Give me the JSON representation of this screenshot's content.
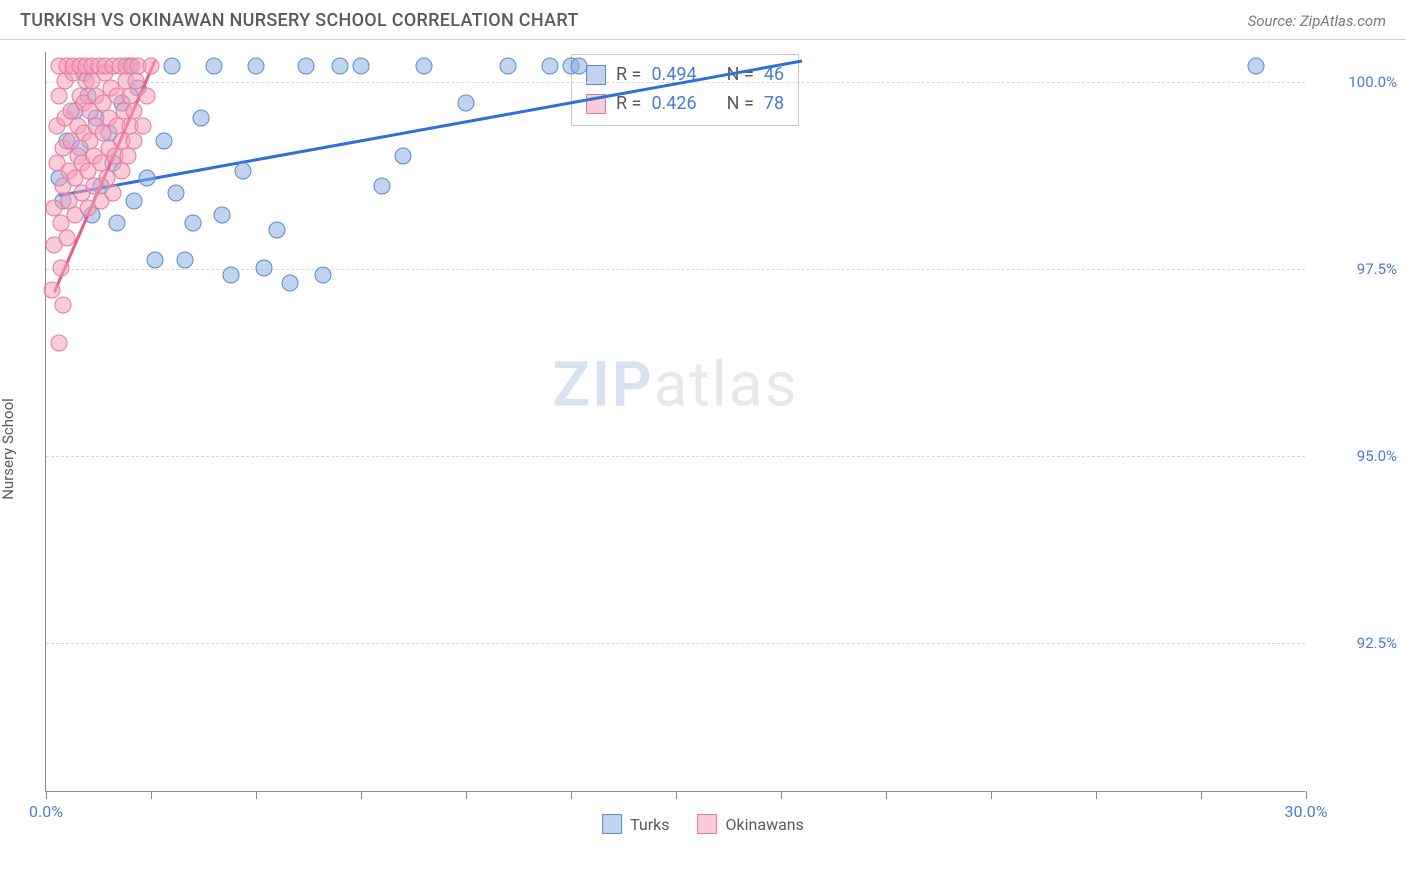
{
  "title": "TURKISH VS OKINAWAN NURSERY SCHOOL CORRELATION CHART",
  "source": "Source: ZipAtlas.com",
  "ylabel": "Nursery School",
  "watermark": {
    "zip": "ZIP",
    "atlas": "atlas"
  },
  "chart": {
    "type": "scatter",
    "background_color": "#ffffff",
    "grid_color": "#d8d8d8",
    "axis_color": "#888888",
    "xlim": [
      0.0,
      30.0
    ],
    "ylim": [
      90.5,
      100.4
    ],
    "xtick_positions": [
      0.0,
      2.5,
      5.0,
      7.5,
      10.0,
      12.5,
      15.0,
      17.5,
      20.0,
      22.5,
      25.0,
      27.5,
      30.0
    ],
    "xtick_labels": {
      "first": "0.0%",
      "last": "30.0%"
    },
    "ytick_positions": [
      92.5,
      95.0,
      97.5,
      100.0
    ],
    "ytick_labels": [
      "92.5%",
      "95.0%",
      "97.5%",
      "100.0%"
    ],
    "label_fontsize": 15,
    "tick_color": "#4a7bd0",
    "marker_size": 17,
    "series": [
      {
        "name": "Turks",
        "fill": "rgba(140,175,225,0.55)",
        "stroke": "#5a8bd0",
        "line_color": "#2f6fd8",
        "points": [
          [
            0.3,
            98.7
          ],
          [
            0.5,
            99.2
          ],
          [
            0.4,
            98.4
          ],
          [
            0.7,
            99.6
          ],
          [
            0.8,
            99.1
          ],
          [
            0.9,
            100.1
          ],
          [
            1.0,
            99.8
          ],
          [
            1.1,
            98.2
          ],
          [
            1.2,
            99.5
          ],
          [
            1.3,
            98.6
          ],
          [
            1.5,
            99.3
          ],
          [
            1.6,
            98.9
          ],
          [
            1.7,
            98.1
          ],
          [
            1.8,
            99.7
          ],
          [
            2.0,
            100.2
          ],
          [
            2.1,
            98.4
          ],
          [
            2.2,
            99.9
          ],
          [
            2.4,
            98.7
          ],
          [
            2.6,
            97.6
          ],
          [
            2.8,
            99.2
          ],
          [
            3.0,
            100.2
          ],
          [
            3.1,
            98.5
          ],
          [
            3.3,
            97.6
          ],
          [
            3.5,
            98.1
          ],
          [
            3.7,
            99.5
          ],
          [
            4.0,
            100.2
          ],
          [
            4.2,
            98.2
          ],
          [
            4.4,
            97.4
          ],
          [
            4.7,
            98.8
          ],
          [
            5.0,
            100.2
          ],
          [
            5.2,
            97.5
          ],
          [
            5.5,
            98.0
          ],
          [
            5.8,
            97.3
          ],
          [
            6.2,
            100.2
          ],
          [
            6.6,
            97.4
          ],
          [
            7.0,
            100.2
          ],
          [
            7.5,
            100.2
          ],
          [
            8.0,
            98.6
          ],
          [
            8.5,
            99.0
          ],
          [
            9.0,
            100.2
          ],
          [
            10.0,
            99.7
          ],
          [
            11.0,
            100.2
          ],
          [
            12.0,
            100.2
          ],
          [
            12.5,
            100.2
          ],
          [
            12.7,
            100.2
          ],
          [
            28.8,
            100.2
          ]
        ],
        "trend": {
          "x1": 0.3,
          "y1": 98.5,
          "x2": 18.0,
          "y2": 100.3
        }
      },
      {
        "name": "Okinawans",
        "fill": "rgba(245,160,185,0.55)",
        "stroke": "#e67aa0",
        "line_color": "#e85a8a",
        "points": [
          [
            0.15,
            97.2
          ],
          [
            0.2,
            97.8
          ],
          [
            0.2,
            98.3
          ],
          [
            0.25,
            98.9
          ],
          [
            0.25,
            99.4
          ],
          [
            0.3,
            99.8
          ],
          [
            0.3,
            100.2
          ],
          [
            0.35,
            97.5
          ],
          [
            0.35,
            98.1
          ],
          [
            0.4,
            98.6
          ],
          [
            0.4,
            99.1
          ],
          [
            0.45,
            99.5
          ],
          [
            0.45,
            100.0
          ],
          [
            0.5,
            100.2
          ],
          [
            0.5,
            97.9
          ],
          [
            0.55,
            98.4
          ],
          [
            0.55,
            98.8
          ],
          [
            0.6,
            99.2
          ],
          [
            0.6,
            99.6
          ],
          [
            0.65,
            100.1
          ],
          [
            0.65,
            100.2
          ],
          [
            0.7,
            98.2
          ],
          [
            0.7,
            98.7
          ],
          [
            0.75,
            99.0
          ],
          [
            0.75,
            99.4
          ],
          [
            0.8,
            99.8
          ],
          [
            0.8,
            100.2
          ],
          [
            0.85,
            98.5
          ],
          [
            0.85,
            98.9
          ],
          [
            0.9,
            99.3
          ],
          [
            0.9,
            99.7
          ],
          [
            0.95,
            100.0
          ],
          [
            0.95,
            100.2
          ],
          [
            1.0,
            98.3
          ],
          [
            1.0,
            98.8
          ],
          [
            1.05,
            99.2
          ],
          [
            1.05,
            99.6
          ],
          [
            1.1,
            100.0
          ],
          [
            1.1,
            100.2
          ],
          [
            1.15,
            98.6
          ],
          [
            1.15,
            99.0
          ],
          [
            1.2,
            99.4
          ],
          [
            1.2,
            99.8
          ],
          [
            1.25,
            100.2
          ],
          [
            1.3,
            98.4
          ],
          [
            1.3,
            98.9
          ],
          [
            1.35,
            99.3
          ],
          [
            1.35,
            99.7
          ],
          [
            1.4,
            100.1
          ],
          [
            1.4,
            100.2
          ],
          [
            1.45,
            98.7
          ],
          [
            1.5,
            99.1
          ],
          [
            1.5,
            99.5
          ],
          [
            1.55,
            99.9
          ],
          [
            1.6,
            100.2
          ],
          [
            1.6,
            98.5
          ],
          [
            1.65,
            99.0
          ],
          [
            1.7,
            99.4
          ],
          [
            1.7,
            99.8
          ],
          [
            1.75,
            100.2
          ],
          [
            1.8,
            98.8
          ],
          [
            1.8,
            99.2
          ],
          [
            1.85,
            99.6
          ],
          [
            1.9,
            100.0
          ],
          [
            1.9,
            100.2
          ],
          [
            1.95,
            99.0
          ],
          [
            2.0,
            99.4
          ],
          [
            2.0,
            99.8
          ],
          [
            2.05,
            100.2
          ],
          [
            2.1,
            99.2
          ],
          [
            2.1,
            99.6
          ],
          [
            2.15,
            100.0
          ],
          [
            2.2,
            100.2
          ],
          [
            2.3,
            99.4
          ],
          [
            2.4,
            99.8
          ],
          [
            2.5,
            100.2
          ],
          [
            0.3,
            96.5
          ],
          [
            0.4,
            97.0
          ]
        ],
        "trend": {
          "x1": 0.2,
          "y1": 97.2,
          "x2": 2.6,
          "y2": 100.3
        }
      }
    ]
  },
  "stats": {
    "rows": [
      {
        "swatch_fill": "rgba(140,175,225,0.55)",
        "swatch_stroke": "#5a8bd0",
        "r_label": "R =",
        "r_val": "0.494",
        "n_label": "N =",
        "n_val": "46"
      },
      {
        "swatch_fill": "rgba(245,160,185,0.55)",
        "swatch_stroke": "#e67aa0",
        "r_label": "R =",
        "r_val": "0.426",
        "n_label": "N =",
        "n_val": "78"
      }
    ]
  },
  "legend": {
    "items": [
      {
        "label": "Turks",
        "fill": "rgba(140,175,225,0.55)",
        "stroke": "#5a8bd0"
      },
      {
        "label": "Okinawans",
        "fill": "rgba(245,160,185,0.55)",
        "stroke": "#e67aa0"
      }
    ]
  }
}
